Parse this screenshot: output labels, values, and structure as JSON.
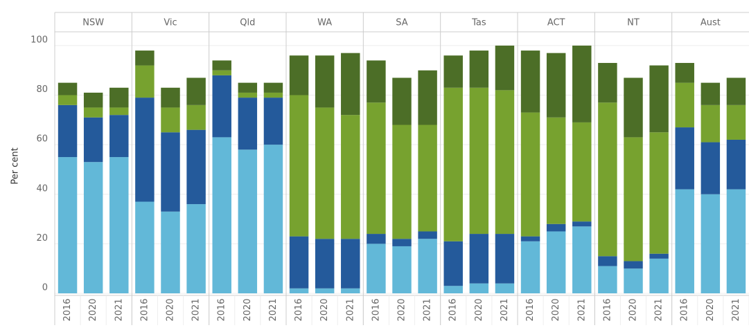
{
  "chart_data": {
    "type": "bar",
    "stacked": true,
    "y_label": "Per cent",
    "ylim": [
      0,
      105
    ],
    "yticks": [
      0,
      20,
      40,
      60,
      80,
      100
    ],
    "grid": true,
    "colors": [
      "#62b8d8",
      "#245a9b",
      "#77a22f",
      "#4c6e27"
    ],
    "panels": [
      {
        "name": "NSW",
        "categories": [
          "2016",
          "2020",
          "2021"
        ],
        "series": [
          {
            "values": [
              55,
              53,
              55
            ]
          },
          {
            "values": [
              21,
              18,
              17
            ]
          },
          {
            "values": [
              4,
              4,
              3
            ]
          },
          {
            "values": [
              5,
              6,
              8
            ]
          }
        ]
      },
      {
        "name": "Vic",
        "categories": [
          "2016",
          "2020",
          "2021"
        ],
        "series": [
          {
            "values": [
              37,
              33,
              36
            ]
          },
          {
            "values": [
              42,
              32,
              30
            ]
          },
          {
            "values": [
              13,
              10,
              10
            ]
          },
          {
            "values": [
              6,
              8,
              11
            ]
          }
        ]
      },
      {
        "name": "Qld",
        "categories": [
          "2016",
          "2020",
          "2021"
        ],
        "series": [
          {
            "values": [
              63,
              58,
              60
            ]
          },
          {
            "values": [
              25,
              21,
              19
            ]
          },
          {
            "values": [
              2,
              2,
              2
            ]
          },
          {
            "values": [
              4,
              4,
              4
            ]
          }
        ]
      },
      {
        "name": "WA",
        "categories": [
          "2016",
          "2020",
          "2021"
        ],
        "series": [
          {
            "values": [
              2,
              2,
              2
            ]
          },
          {
            "values": [
              21,
              20,
              20
            ]
          },
          {
            "values": [
              57,
              53,
              50
            ]
          },
          {
            "values": [
              16,
              21,
              25
            ]
          }
        ]
      },
      {
        "name": "SA",
        "categories": [
          "2016",
          "2020",
          "2021"
        ],
        "series": [
          {
            "values": [
              20,
              19,
              22
            ]
          },
          {
            "values": [
              4,
              3,
              3
            ]
          },
          {
            "values": [
              53,
              46,
              43
            ]
          },
          {
            "values": [
              17,
              19,
              22
            ]
          }
        ]
      },
      {
        "name": "Tas",
        "categories": [
          "2016",
          "2020",
          "2021"
        ],
        "series": [
          {
            "values": [
              3,
              4,
              4
            ]
          },
          {
            "values": [
              18,
              20,
              20
            ]
          },
          {
            "values": [
              62,
              59,
              58
            ]
          },
          {
            "values": [
              13,
              15,
              18
            ]
          }
        ]
      },
      {
        "name": "ACT",
        "categories": [
          "2016",
          "2020",
          "2021"
        ],
        "series": [
          {
            "values": [
              21,
              25,
              27
            ]
          },
          {
            "values": [
              2,
              3,
              2
            ]
          },
          {
            "values": [
              50,
              43,
              40
            ]
          },
          {
            "values": [
              25,
              26,
              31
            ]
          }
        ]
      },
      {
        "name": "NT",
        "categories": [
          "2016",
          "2020",
          "2021"
        ],
        "series": [
          {
            "values": [
              11,
              10,
              14
            ]
          },
          {
            "values": [
              4,
              3,
              2
            ]
          },
          {
            "values": [
              62,
              50,
              49
            ]
          },
          {
            "values": [
              16,
              24,
              27
            ]
          }
        ]
      },
      {
        "name": "Aust",
        "categories": [
          "2016",
          "2020",
          "2021"
        ],
        "series": [
          {
            "values": [
              42,
              40,
              42
            ]
          },
          {
            "values": [
              25,
              21,
              20
            ]
          },
          {
            "values": [
              18,
              15,
              14
            ]
          },
          {
            "values": [
              8,
              9,
              11
            ]
          }
        ]
      }
    ]
  }
}
